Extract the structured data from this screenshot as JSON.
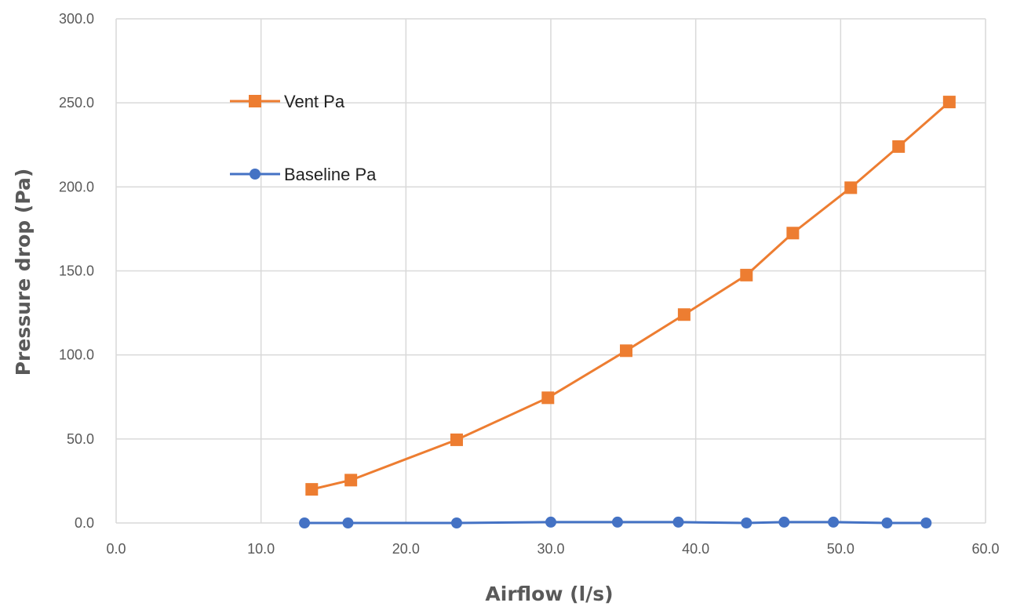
{
  "chart_data": {
    "type": "line",
    "title": "",
    "xlabel": "Airflow (l/s)",
    "ylabel": "Pressure drop (Pa)",
    "xlim": [
      0,
      60
    ],
    "ylim": [
      0,
      300
    ],
    "x_ticks": [
      "0.0",
      "10.0",
      "20.0",
      "30.0",
      "40.0",
      "50.0",
      "60.0"
    ],
    "y_ticks": [
      "0.0",
      "50.0",
      "100.0",
      "150.0",
      "200.0",
      "250.0",
      "300.0"
    ],
    "grid": true,
    "legend_position": "upper-left",
    "series": [
      {
        "name": "Vent Pa",
        "color": "#ed7d31",
        "marker": "square",
        "x": [
          13.5,
          16.2,
          23.5,
          29.8,
          35.2,
          39.2,
          43.5,
          46.7,
          50.7,
          54.0,
          57.5
        ],
        "y": [
          20.0,
          25.5,
          49.5,
          74.5,
          102.5,
          124.0,
          147.5,
          172.5,
          199.5,
          224.0,
          250.5
        ]
      },
      {
        "name": "Baseline Pa",
        "color": "#4472c4",
        "marker": "circle",
        "x": [
          13.0,
          16.0,
          23.5,
          30.0,
          34.6,
          38.8,
          43.5,
          46.1,
          49.5,
          53.2,
          55.9
        ],
        "y": [
          0.0,
          0.0,
          0.0,
          0.5,
          0.5,
          0.5,
          0.0,
          0.5,
          0.5,
          0.0,
          0.0
        ]
      }
    ]
  }
}
